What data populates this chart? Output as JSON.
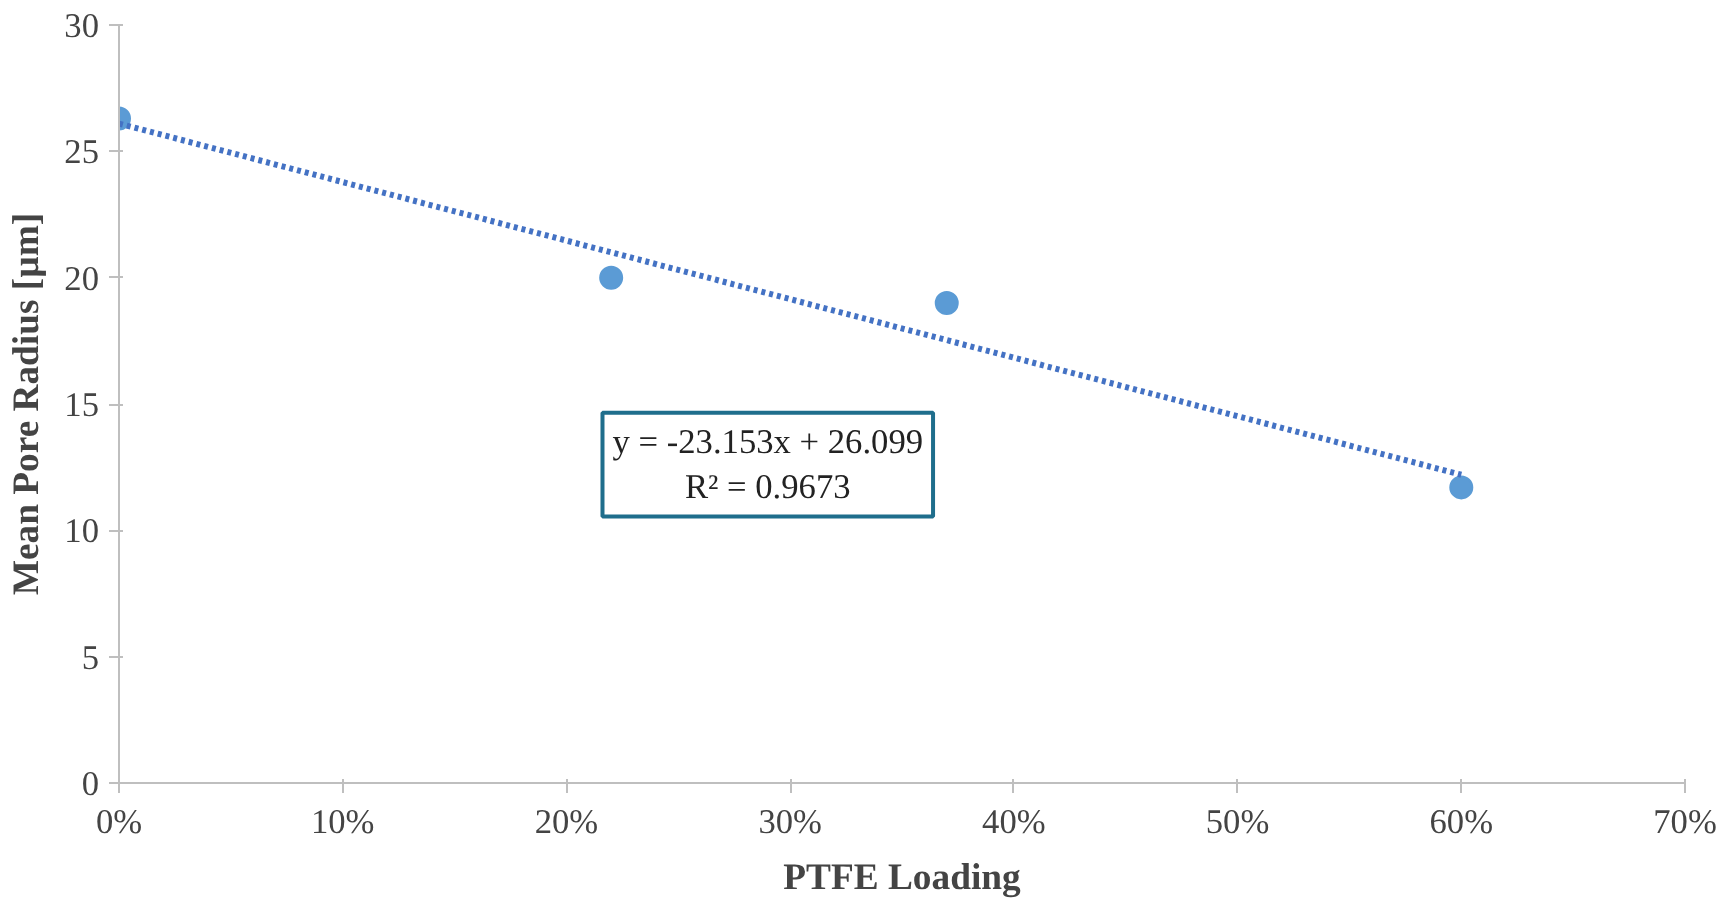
{
  "chart_data": {
    "type": "scatter",
    "xlabel": "PTFE Loading",
    "ylabel": "Mean Pore Radius [µm]",
    "xlim": [
      0,
      0.7
    ],
    "xticks": [
      {
        "value": 0,
        "label": "0%"
      },
      {
        "value": 0.1,
        "label": "10%"
      },
      {
        "value": 0.2,
        "label": "20%"
      },
      {
        "value": 0.3,
        "label": "30%"
      },
      {
        "value": 0.4,
        "label": "40%"
      },
      {
        "value": 0.5,
        "label": "50%"
      },
      {
        "value": 0.6,
        "label": "60%"
      },
      {
        "value": 0.7,
        "label": "70%"
      }
    ],
    "ylim": [
      0,
      30
    ],
    "yticks": [
      0,
      5,
      10,
      15,
      20,
      25,
      30
    ],
    "grid": false,
    "marker": "circle",
    "series": [
      {
        "color": "#5b9bd5",
        "x": [
          0,
          0.22,
          0.37,
          0.6
        ],
        "values": [
          26.3,
          20,
          19,
          11.7
        ]
      },
      {
        "type": "line",
        "color": "#4472c4",
        "line_style": "dotted",
        "marker": "none",
        "x": [
          0,
          0.6
        ],
        "values": [
          26.1,
          12.2
        ]
      }
    ],
    "annotations": [
      "y = -23.153x + 26.099\nR² = 0.9673"
    ]
  }
}
